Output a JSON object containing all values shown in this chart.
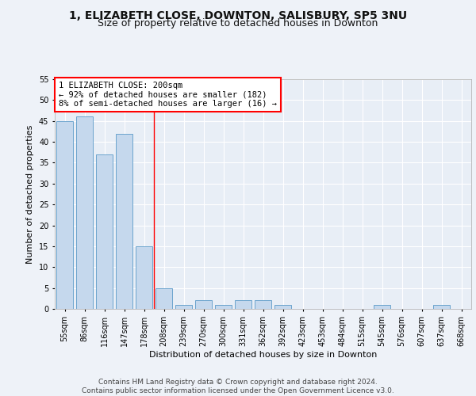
{
  "title1": "1, ELIZABETH CLOSE, DOWNTON, SALISBURY, SP5 3NU",
  "title2": "Size of property relative to detached houses in Downton",
  "xlabel": "Distribution of detached houses by size in Downton",
  "ylabel": "Number of detached properties",
  "bar_labels": [
    "55sqm",
    "86sqm",
    "116sqm",
    "147sqm",
    "178sqm",
    "208sqm",
    "239sqm",
    "270sqm",
    "300sqm",
    "331sqm",
    "362sqm",
    "392sqm",
    "423sqm",
    "453sqm",
    "484sqm",
    "515sqm",
    "545sqm",
    "576sqm",
    "607sqm",
    "637sqm",
    "668sqm"
  ],
  "bar_values": [
    45,
    46,
    37,
    42,
    15,
    5,
    1,
    2,
    1,
    2,
    2,
    1,
    0,
    0,
    0,
    0,
    1,
    0,
    0,
    1,
    0
  ],
  "bar_color": "#c5d8ed",
  "bar_edge_color": "#5a9ac8",
  "property_line_x": 4.5,
  "property_sqm": 200,
  "annotation_text": "1 ELIZABETH CLOSE: 200sqm\n← 92% of detached houses are smaller (182)\n8% of semi-detached houses are larger (16) →",
  "ylim": [
    0,
    55
  ],
  "yticks": [
    0,
    5,
    10,
    15,
    20,
    25,
    30,
    35,
    40,
    45,
    50,
    55
  ],
  "footnote": "Contains HM Land Registry data © Crown copyright and database right 2024.\nContains public sector information licensed under the Open Government Licence v3.0.",
  "bg_color": "#eef2f8",
  "plot_bg_color": "#e8eef6",
  "grid_color": "#ffffff",
  "title_fontsize": 10,
  "subtitle_fontsize": 9,
  "axis_label_fontsize": 8,
  "tick_fontsize": 7,
  "annotation_fontsize": 7.5,
  "footnote_fontsize": 6.5
}
